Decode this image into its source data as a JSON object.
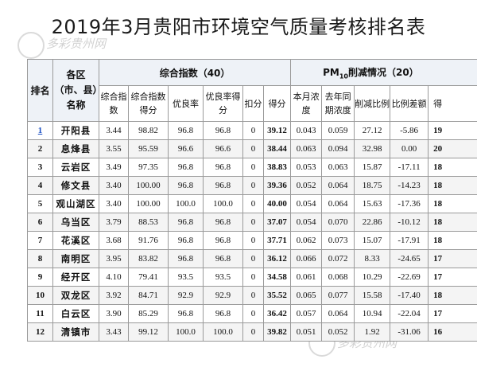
{
  "title": "2019年3月贵阳市环境空气质量考核排名表",
  "headers": {
    "rank": "排名",
    "region": "各区（市、县）名称",
    "composite_group": "综合指数（40）",
    "pm_group_prefix": "PM",
    "pm_group_sub": "10",
    "pm_group_suffix": "削减情况（20）",
    "composite_cols": [
      "综合指数",
      "综合指数得分",
      "优良率",
      "优良率得分",
      "扣分",
      "得分"
    ],
    "pm_cols": [
      "本月浓度",
      "去年同期浓度",
      "削减比例",
      "比例差额",
      "得"
    ]
  },
  "rows": [
    {
      "rank": "1",
      "region": "开阳县",
      "ci": "3.44",
      "ci_score": "98.82",
      "good": "96.8",
      "good_score": "96.8",
      "deduct": "0",
      "score": "39.12",
      "pm_cur": "0.043",
      "pm_prev": "0.059",
      "pm_red": "27.12",
      "pm_diff": "-5.86",
      "pm_score": "19"
    },
    {
      "rank": "2",
      "region": "息烽县",
      "ci": "3.55",
      "ci_score": "95.59",
      "good": "96.6",
      "good_score": "96.6",
      "deduct": "0",
      "score": "38.44",
      "pm_cur": "0.063",
      "pm_prev": "0.094",
      "pm_red": "32.98",
      "pm_diff": "0.00",
      "pm_score": "20"
    },
    {
      "rank": "3",
      "region": "云岩区",
      "ci": "3.49",
      "ci_score": "97.35",
      "good": "96.8",
      "good_score": "96.8",
      "deduct": "0",
      "score": "38.83",
      "pm_cur": "0.053",
      "pm_prev": "0.063",
      "pm_red": "15.87",
      "pm_diff": "-17.11",
      "pm_score": "18"
    },
    {
      "rank": "4",
      "region": "修文县",
      "ci": "3.40",
      "ci_score": "100.00",
      "good": "96.8",
      "good_score": "96.8",
      "deduct": "0",
      "score": "39.36",
      "pm_cur": "0.052",
      "pm_prev": "0.064",
      "pm_red": "18.75",
      "pm_diff": "-14.23",
      "pm_score": "18"
    },
    {
      "rank": "5",
      "region": "观山湖区",
      "ci": "3.40",
      "ci_score": "100.00",
      "good": "100.0",
      "good_score": "100.0",
      "deduct": "0",
      "score": "40.00",
      "pm_cur": "0.054",
      "pm_prev": "0.064",
      "pm_red": "15.63",
      "pm_diff": "-17.36",
      "pm_score": "18"
    },
    {
      "rank": "6",
      "region": "乌当区",
      "ci": "3.79",
      "ci_score": "88.53",
      "good": "96.8",
      "good_score": "96.8",
      "deduct": "0",
      "score": "37.07",
      "pm_cur": "0.054",
      "pm_prev": "0.070",
      "pm_red": "22.86",
      "pm_diff": "-10.12",
      "pm_score": "18"
    },
    {
      "rank": "7",
      "region": "花溪区",
      "ci": "3.68",
      "ci_score": "91.76",
      "good": "96.8",
      "good_score": "96.8",
      "deduct": "0",
      "score": "37.71",
      "pm_cur": "0.062",
      "pm_prev": "0.073",
      "pm_red": "15.07",
      "pm_diff": "-17.91",
      "pm_score": "18"
    },
    {
      "rank": "8",
      "region": "南明区",
      "ci": "3.95",
      "ci_score": "83.82",
      "good": "96.8",
      "good_score": "96.8",
      "deduct": "0",
      "score": "36.12",
      "pm_cur": "0.066",
      "pm_prev": "0.072",
      "pm_red": "8.33",
      "pm_diff": "-24.65",
      "pm_score": "17"
    },
    {
      "rank": "9",
      "region": "经开区",
      "ci": "4.10",
      "ci_score": "79.41",
      "good": "93.5",
      "good_score": "93.5",
      "deduct": "0",
      "score": "34.58",
      "pm_cur": "0.061",
      "pm_prev": "0.068",
      "pm_red": "10.29",
      "pm_diff": "-22.69",
      "pm_score": "17"
    },
    {
      "rank": "10",
      "region": "双龙区",
      "ci": "3.92",
      "ci_score": "84.71",
      "good": "92.9",
      "good_score": "92.9",
      "deduct": "0",
      "score": "35.52",
      "pm_cur": "0.065",
      "pm_prev": "0.077",
      "pm_red": "15.58",
      "pm_diff": "-17.40",
      "pm_score": "18"
    },
    {
      "rank": "11",
      "region": "白云区",
      "ci": "3.90",
      "ci_score": "85.29",
      "good": "96.8",
      "good_score": "96.8",
      "deduct": "0",
      "score": "36.42",
      "pm_cur": "0.057",
      "pm_prev": "0.064",
      "pm_red": "10.94",
      "pm_diff": "-22.04",
      "pm_score": "17"
    },
    {
      "rank": "12",
      "region": "清镇市",
      "ci": "3.43",
      "ci_score": "99.12",
      "good": "100.0",
      "good_score": "100.0",
      "deduct": "0",
      "score": "39.82",
      "pm_cur": "0.051",
      "pm_prev": "0.052",
      "pm_red": "1.92",
      "pm_diff": "-31.06",
      "pm_score": "16"
    }
  ],
  "watermarks": [
    "多彩贵州网",
    "多彩贵州网"
  ]
}
